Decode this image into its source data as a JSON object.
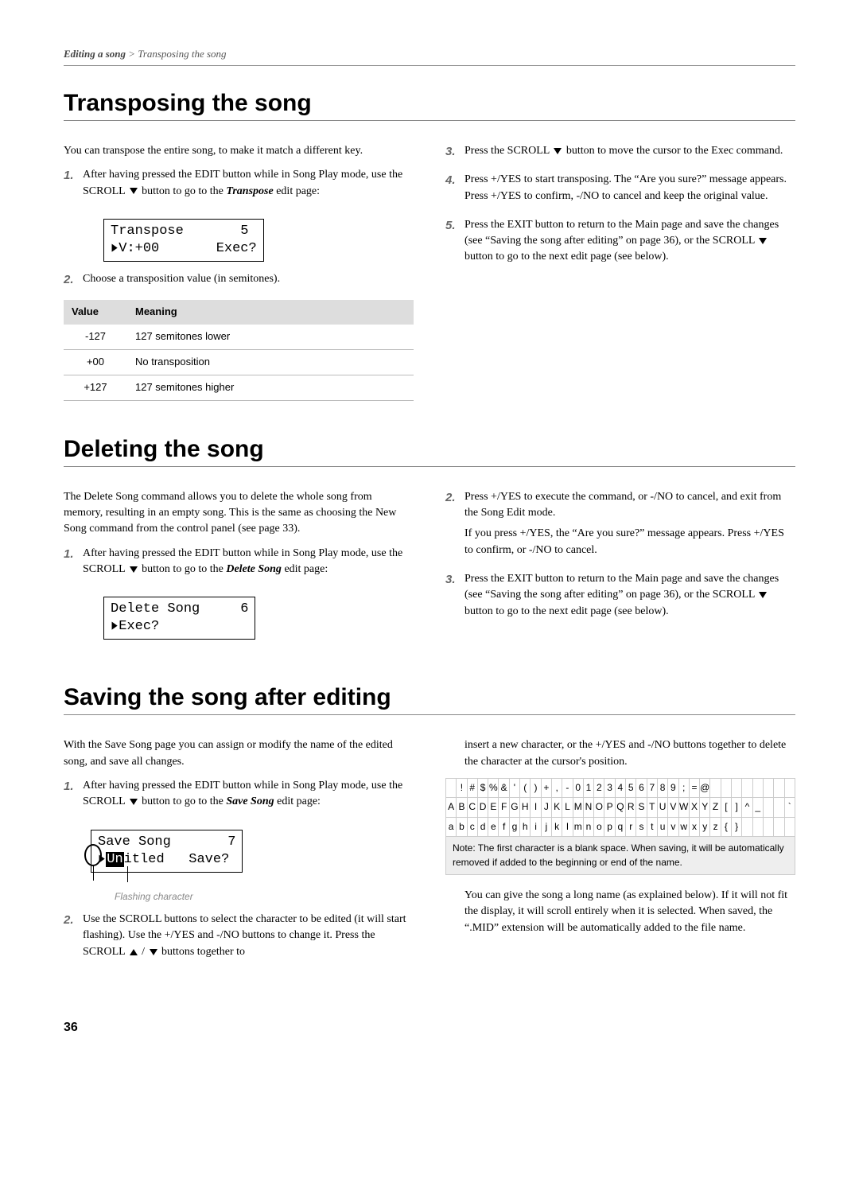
{
  "header": {
    "path_bold": "Editing a song",
    "path_rest": " > Transposing the song"
  },
  "sections": {
    "transpose": {
      "title": "Transposing the song",
      "intro": "You can transpose the entire song, to make it match a different key.",
      "step1": "After having pressed the EDIT button while in Song Play mode, use the SCROLL ",
      "step1b": " button to go to the ",
      "step1c": "Transpose",
      "step1d": " edit page:",
      "lcd_l1": "Transpose       5",
      "lcd_l2a": "V:+00",
      "lcd_l2b": "Exec?",
      "step2": "Choose a transposition value (in semitones).",
      "table": {
        "h1": "Value",
        "h2": "Meaning",
        "r1a": "-127",
        "r1b": "127 semitones lower",
        "r2a": "+00",
        "r2b": "No transposition",
        "r3a": "+127",
        "r3b": "127 semitones higher"
      },
      "step3a": "Press the SCROLL ",
      "step3b": " button to move the cursor to the Exec command.",
      "step4": "Press +/YES to start transposing. The “Are you sure?” message appears. Press +/YES to confirm, -/NO to cancel and keep the original value.",
      "step5a": "Press the EXIT button to return to the Main page and save the changes (see “Saving the song after editing” on page 36), or the SCROLL ",
      "step5b": " button to go to the next edit page (see below)."
    },
    "delete": {
      "title": "Deleting the song",
      "intro": "The Delete Song command allows you to delete the whole song from memory, resulting in an empty song. This is the same as choosing the New Song command from the control panel (see page 33).",
      "step1a": "After having pressed the EDIT button while in Song Play mode, use the SCROLL ",
      "step1b": " button to go to the ",
      "step1c": "Delete Song",
      "step1d": " edit page:",
      "lcd_l1": "Delete Song     6",
      "lcd_l2": "Exec?",
      "step2": "Press +/YES to execute the command, or -/NO to cancel, and exit from the Song Edit mode.",
      "step2p2": "If you press +/YES, the “Are you sure?” message appears. Press +/YES to confirm, or -/NO to cancel.",
      "step3a": "Press the EXIT button to return to the Main page and save the changes (see “Saving the song after editing” on page 36), or the SCROLL ",
      "step3b": " button to go to the next edit page (see below)."
    },
    "save": {
      "title": "Saving the song after editing",
      "intro": "With the Save Song page you can assign or modify the name of the edited song, and save all changes.",
      "step1a": "After having pressed the EDIT button while in Song Play mode, use the SCROLL ",
      "step1b": " button to go to the ",
      "step1c": "Save Song",
      "step1d": " edit page:",
      "lcd_l1": "Save Song       7",
      "lcd_l2_pre": "Un",
      "lcd_l2_post": "itled",
      "lcd_l2_right": "Save?",
      "flash_label": "Flashing character",
      "step2a": "Use the SCROLL buttons to select the character to be edited (it will start flashing). Use the +/YES and -/NO buttons to change it. Press the SCROLL ",
      "step2b": " buttons together to",
      "right_p1": "insert a new character, or the +/YES and -/NO buttons together to delete the character at the cursor's position.",
      "char_rows": {
        "r1": [
          " ",
          "!",
          "#",
          "$",
          "%",
          "&",
          "'",
          "(",
          ")",
          "+",
          ",",
          "-",
          "0",
          "1",
          "2",
          "3",
          "4",
          "5",
          "6",
          "7",
          "8",
          "9",
          ";",
          "=",
          "@",
          " ",
          " ",
          " ",
          " ",
          " ",
          " ",
          " ",
          " "
        ],
        "r2": [
          "A",
          "B",
          "C",
          "D",
          "E",
          "F",
          "G",
          "H",
          "I",
          "J",
          "K",
          "L",
          "M",
          "N",
          "O",
          "P",
          "Q",
          "R",
          "S",
          "T",
          "U",
          "V",
          "W",
          "X",
          "Y",
          "Z",
          "[",
          "]",
          "^",
          "_",
          " ",
          " ",
          "`"
        ],
        "r3": [
          "a",
          "b",
          "c",
          "d",
          "e",
          "f",
          "g",
          "h",
          "i",
          "j",
          "k",
          "l",
          "m",
          "n",
          "o",
          "p",
          "q",
          "r",
          "s",
          "t",
          "u",
          "v",
          "w",
          "x",
          "y",
          "z",
          "{",
          "}",
          " ",
          " ",
          " ",
          " ",
          " "
        ]
      },
      "char_note": "Note: The first character is a blank space. When saving, it will be automatically removed if added to the beginning or end of the name.",
      "right_p2": "You can give the song a long name (as explained below). If it will not fit the display, it will scroll entirely when it is selected. When saved, the “.MID” extension will be automatically added to the file name."
    }
  },
  "page_number": "36"
}
